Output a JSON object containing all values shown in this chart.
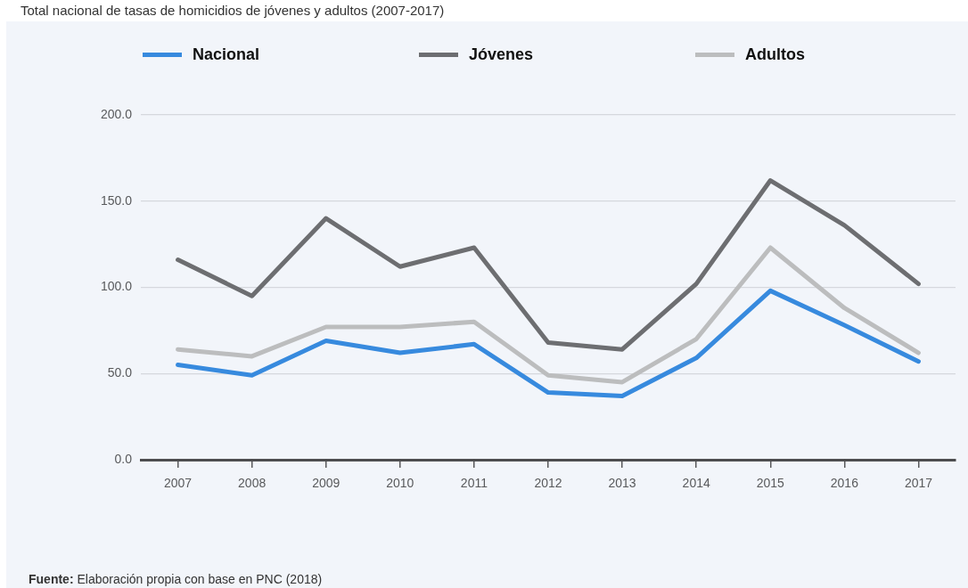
{
  "chart_data": {
    "type": "line",
    "title": "Total nacional de tasas de homicidios de jóvenes y adultos (2007-2017)",
    "categories": [
      "2007",
      "2008",
      "2009",
      "2010",
      "2011",
      "2012",
      "2013",
      "2014",
      "2015",
      "2016",
      "2017"
    ],
    "series": [
      {
        "name": "Nacional",
        "color": "#378ade",
        "values": [
          55,
          49,
          69,
          62,
          67,
          39,
          37,
          59,
          98,
          78,
          57
        ]
      },
      {
        "name": "Jóvenes",
        "color": "#6d6e71",
        "values": [
          116,
          95,
          140,
          112,
          123,
          68,
          64,
          102,
          162,
          136,
          102
        ]
      },
      {
        "name": "Adultos",
        "color": "#bcbdbe",
        "values": [
          64,
          60,
          77,
          77,
          80,
          49,
          45,
          70,
          123,
          88,
          62
        ]
      }
    ],
    "ylim": [
      0,
      200
    ],
    "yticks": [
      {
        "value": 0,
        "label": "0.0"
      },
      {
        "value": 50,
        "label": "50.0"
      },
      {
        "value": 100,
        "label": "100.0"
      },
      {
        "value": 150,
        "label": "150.0"
      },
      {
        "value": 200,
        "label": "200.0"
      }
    ],
    "grid": "y",
    "legend": "top",
    "annotations": [
      "Fuente: Elaboración propia con base en PNC (2018)"
    ]
  }
}
